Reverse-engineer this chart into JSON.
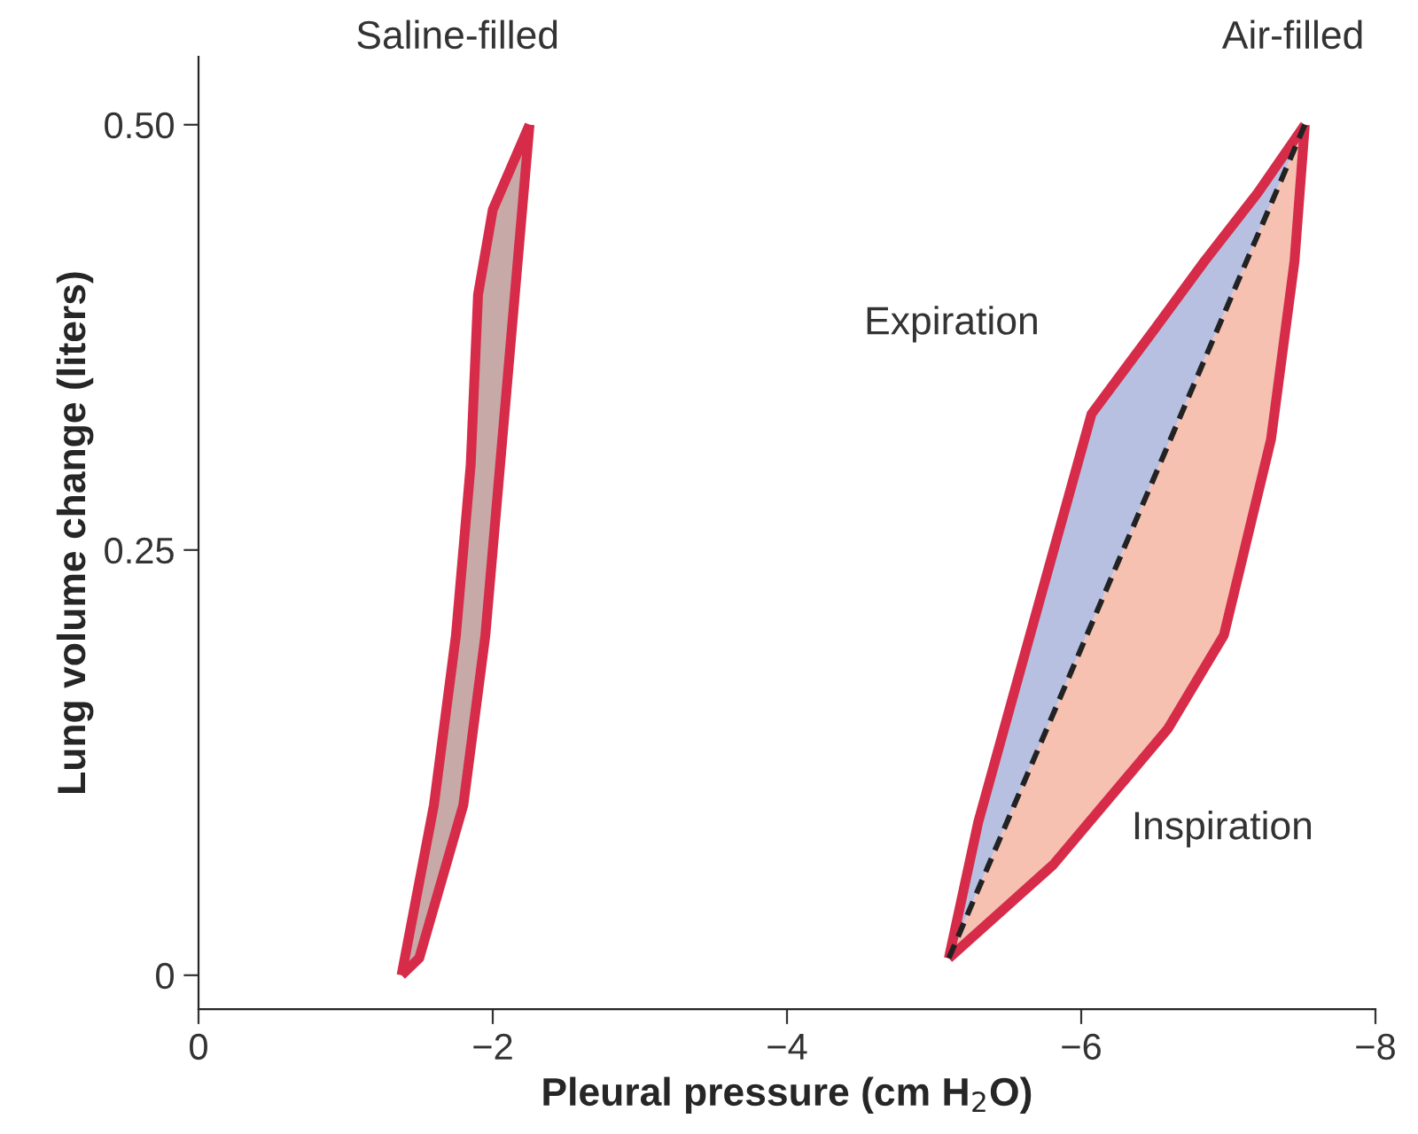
{
  "chart_data": {
    "type": "line",
    "xlabel": "Pleural pressure (cm H$_{2}$O)",
    "ylabel": "Lung volume change (liters)",
    "xlim": [
      0,
      -8
    ],
    "ylim": [
      -0.02,
      0.54
    ],
    "xticks": [
      0,
      {
        "value": -2,
        "label": "−2"
      },
      {
        "value": -4,
        "label": "−4"
      },
      {
        "value": -6,
        "label": "−6"
      },
      {
        "value": -8,
        "label": "−8"
      }
    ],
    "yticks": [
      0,
      0.25,
      {
        "value": 0.5,
        "label": "0.50"
      }
    ],
    "grid": false,
    "legend": false,
    "marker": "none",
    "series": [
      {
        "color": "#d62c4a",
        "line_style": "solid",
        "x": [
          -1.38,
          -1.6,
          -1.75,
          -1.85,
          -1.9,
          -2.0,
          -2.25
        ],
        "values": [
          0.0,
          0.1,
          0.2,
          0.3,
          0.4,
          0.45,
          0.5
        ]
      },
      {
        "color": "#d62c4a",
        "line_style": "solid",
        "x": [
          -1.38,
          -1.5,
          -1.8,
          -1.95,
          -2.05,
          -2.15,
          -2.25
        ],
        "values": [
          0.0,
          0.01,
          0.1,
          0.2,
          0.3,
          0.4,
          0.5
        ]
      },
      {
        "color": "#d62c4a",
        "line_style": "solid",
        "x": [
          -5.1,
          -5.3,
          -5.62,
          -6.07,
          -6.5,
          -6.84,
          -7.2,
          -7.52
        ],
        "values": [
          0.01,
          0.09,
          0.19,
          0.33,
          0.38,
          0.42,
          0.46,
          0.5
        ]
      },
      {
        "color": "#d62c4a",
        "line_style": "solid",
        "x": [
          -5.1,
          -5.81,
          -6.59,
          -6.97,
          -7.29,
          -7.45,
          -7.52
        ],
        "values": [
          0.01,
          0.065,
          0.145,
          0.2,
          0.315,
          0.42,
          0.5
        ]
      },
      {
        "color": "#222222",
        "line_style": "dashed",
        "x": [
          -5.1,
          -7.52
        ],
        "values": [
          0.01,
          0.5
        ]
      }
    ],
    "annotations": [
      "Saline-filled",
      "Air-filled",
      "Expiration",
      "Inspiration"
    ]
  }
}
